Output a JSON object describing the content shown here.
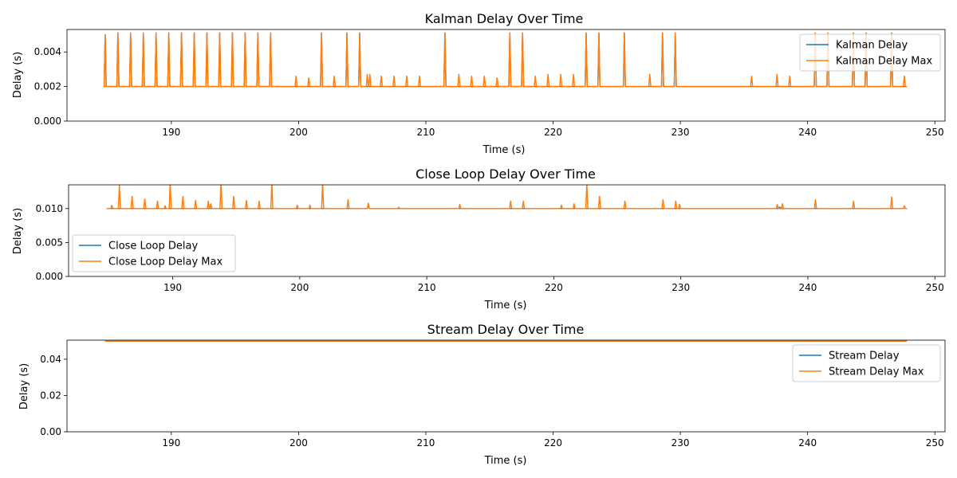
{
  "colors": {
    "blue": "#1f77b4",
    "orange": "#ff7f0e",
    "axis": "#000000",
    "legend_border": "#cccccc"
  },
  "chart_data": [
    {
      "type": "line",
      "title": "Kalman Delay Over Time",
      "xlabel": "Time (s)",
      "ylabel": "Delay (s)",
      "xlim": [
        181.8,
        250.8
      ],
      "ylim": [
        0,
        0.0053
      ],
      "xticks": [
        190,
        200,
        210,
        220,
        230,
        240,
        250
      ],
      "xtick_labels": [
        "190",
        "200",
        "210",
        "220",
        "230",
        "240",
        "250"
      ],
      "yticks": [
        0,
        0.002,
        0.004
      ],
      "ytick_labels": [
        "0.000",
        "0.002",
        "0.004"
      ],
      "legend_position": "top-right",
      "x_range": [
        184.8,
        247.8
      ],
      "series": [
        {
          "name": "Kalman Delay",
          "color": "#1f77b4",
          "baseline": 0.002,
          "spikes": [
            [
              184.8,
              0.005
            ],
            [
              185.8,
              0.0051
            ],
            [
              186.8,
              0.0051
            ],
            [
              187.8,
              0.0051
            ],
            [
              188.8,
              0.0051
            ],
            [
              189.8,
              0.0051
            ],
            [
              190.8,
              0.0051
            ],
            [
              191.8,
              0.0051
            ],
            [
              192.8,
              0.0051
            ],
            [
              193.8,
              0.0051
            ],
            [
              194.8,
              0.0051
            ],
            [
              195.8,
              0.0051
            ],
            [
              196.8,
              0.0051
            ],
            [
              197.8,
              0.0051
            ],
            [
              201.8,
              0.0051
            ],
            [
              203.8,
              0.0051
            ],
            [
              204.8,
              0.0051
            ],
            [
              211.5,
              0.0051
            ],
            [
              216.6,
              0.0051
            ],
            [
              217.6,
              0.0051
            ],
            [
              222.6,
              0.0051
            ],
            [
              223.6,
              0.0051
            ],
            [
              225.6,
              0.0051
            ],
            [
              228.6,
              0.0051
            ],
            [
              229.6,
              0.0051
            ],
            [
              240.6,
              0.0051
            ],
            [
              241.6,
              0.0051
            ],
            [
              243.6,
              0.0051
            ],
            [
              244.6,
              0.0051
            ],
            [
              246.6,
              0.0051
            ]
          ]
        },
        {
          "name": "Kalman Delay Max",
          "color": "#ff7f0e",
          "baseline": 0.002,
          "spikes": [
            [
              184.8,
              0.005
            ],
            [
              185.8,
              0.0051
            ],
            [
              186.8,
              0.0051
            ],
            [
              187.8,
              0.0051
            ],
            [
              188.8,
              0.0051
            ],
            [
              189.8,
              0.0051
            ],
            [
              190.8,
              0.0051
            ],
            [
              191.8,
              0.0051
            ],
            [
              192.8,
              0.0051
            ],
            [
              193.8,
              0.0051
            ],
            [
              194.8,
              0.0051
            ],
            [
              195.8,
              0.0051
            ],
            [
              196.8,
              0.0051
            ],
            [
              197.8,
              0.0051
            ],
            [
              199.8,
              0.0026
            ],
            [
              200.8,
              0.0025
            ],
            [
              201.8,
              0.0051
            ],
            [
              202.8,
              0.0026
            ],
            [
              203.8,
              0.0051
            ],
            [
              204.8,
              0.0051
            ],
            [
              205.4,
              0.0027
            ],
            [
              205.6,
              0.0027
            ],
            [
              206.5,
              0.0026
            ],
            [
              207.5,
              0.0026
            ],
            [
              208.5,
              0.0026
            ],
            [
              209.5,
              0.0026
            ],
            [
              211.5,
              0.0051
            ],
            [
              212.6,
              0.0027
            ],
            [
              213.6,
              0.0026
            ],
            [
              214.6,
              0.0026
            ],
            [
              215.6,
              0.0025
            ],
            [
              216.6,
              0.0051
            ],
            [
              217.6,
              0.0051
            ],
            [
              218.6,
              0.0026
            ],
            [
              219.6,
              0.0027
            ],
            [
              220.6,
              0.0027
            ],
            [
              221.6,
              0.0027
            ],
            [
              222.6,
              0.0051
            ],
            [
              223.6,
              0.0051
            ],
            [
              225.6,
              0.0051
            ],
            [
              227.6,
              0.0027
            ],
            [
              228.6,
              0.0051
            ],
            [
              229.6,
              0.0051
            ],
            [
              235.6,
              0.0026
            ],
            [
              237.6,
              0.0027
            ],
            [
              238.6,
              0.0026
            ],
            [
              240.6,
              0.0051
            ],
            [
              241.6,
              0.0051
            ],
            [
              243.6,
              0.0051
            ],
            [
              244.6,
              0.0051
            ],
            [
              246.6,
              0.0051
            ],
            [
              247.6,
              0.0026
            ]
          ]
        }
      ]
    },
    {
      "type": "line",
      "title": "Close Loop Delay Over Time",
      "xlabel": "Time (s)",
      "ylabel": "Delay (s)",
      "xlim": [
        181.8,
        250.8
      ],
      "ylim": [
        0,
        0.0135
      ],
      "xticks": [
        190,
        200,
        210,
        220,
        230,
        240,
        250
      ],
      "xtick_labels": [
        "190",
        "200",
        "210",
        "220",
        "230",
        "240",
        "250"
      ],
      "yticks": [
        0,
        0.005,
        0.01
      ],
      "ytick_labels": [
        "0.000",
        "0.005",
        "0.010"
      ],
      "legend_position": "bottom-left",
      "x_range": [
        184.8,
        247.8
      ],
      "series": [
        {
          "name": "Close Loop Delay",
          "color": "#1f77b4",
          "baseline": 0.01,
          "spikes": [
            [
              205.4,
              0.0105
            ],
            [
              237.8,
              0.0102
            ],
            [
              247.6,
              0.0103
            ]
          ]
        },
        {
          "name": "Close Loop Delay Max",
          "color": "#ff7f0e",
          "baseline": 0.01,
          "spikes": [
            [
              185.2,
              0.0105
            ],
            [
              185.8,
              0.0134
            ],
            [
              186.8,
              0.0118
            ],
            [
              187.8,
              0.0114
            ],
            [
              188.8,
              0.0111
            ],
            [
              189.4,
              0.0104
            ],
            [
              189.8,
              0.0138
            ],
            [
              190.8,
              0.0118
            ],
            [
              191.8,
              0.0112
            ],
            [
              192.8,
              0.0111
            ],
            [
              193.0,
              0.0107
            ],
            [
              193.8,
              0.0139
            ],
            [
              194.8,
              0.0118
            ],
            [
              195.8,
              0.0112
            ],
            [
              196.8,
              0.0111
            ],
            [
              197.8,
              0.0138
            ],
            [
              199.8,
              0.0105
            ],
            [
              200.8,
              0.0105
            ],
            [
              201.8,
              0.0138
            ],
            [
              203.8,
              0.0113
            ],
            [
              205.4,
              0.0108
            ],
            [
              207.8,
              0.0102
            ],
            [
              212.6,
              0.0106
            ],
            [
              216.6,
              0.0111
            ],
            [
              217.6,
              0.0111
            ],
            [
              220.6,
              0.0105
            ],
            [
              221.6,
              0.0107
            ],
            [
              222.6,
              0.0136
            ],
            [
              223.6,
              0.0118
            ],
            [
              225.6,
              0.0111
            ],
            [
              228.6,
              0.0113
            ],
            [
              229.6,
              0.0111
            ],
            [
              229.9,
              0.0106
            ],
            [
              237.6,
              0.0106
            ],
            [
              238.0,
              0.0107
            ],
            [
              240.6,
              0.0113
            ],
            [
              243.6,
              0.0111
            ],
            [
              246.6,
              0.0117
            ],
            [
              247.6,
              0.0104
            ]
          ]
        }
      ]
    },
    {
      "type": "line",
      "title": "Stream Delay Over Time",
      "xlabel": "Time (s)",
      "ylabel": "Delay (s)",
      "xlim": [
        181.8,
        250.8
      ],
      "ylim": [
        0,
        0.0505
      ],
      "xticks": [
        190,
        200,
        210,
        220,
        230,
        240,
        250
      ],
      "xtick_labels": [
        "190",
        "200",
        "210",
        "220",
        "230",
        "240",
        "250"
      ],
      "yticks": [
        0,
        0.02,
        0.04
      ],
      "ytick_labels": [
        "0.00",
        "0.02",
        "0.04"
      ],
      "legend_position": "top-right",
      "x_range": [
        184.8,
        247.8
      ],
      "series": [
        {
          "name": "Stream Delay",
          "color": "#1f77b4",
          "baseline": 0.05,
          "spikes": []
        },
        {
          "name": "Stream Delay Max",
          "color": "#ff7f0e",
          "baseline": 0.05,
          "spikes": []
        }
      ]
    }
  ]
}
